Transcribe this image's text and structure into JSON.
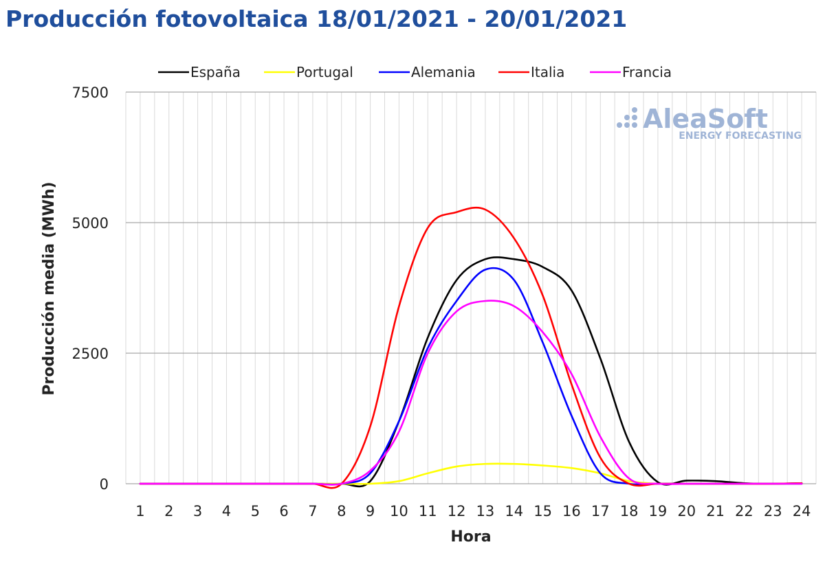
{
  "title": "Producción fotovoltaica 18/01/2021 - 20/01/2021",
  "logo": {
    "name": "AleaSoft",
    "tagline": "ENERGY FORECASTING",
    "color": "#9fb4d6"
  },
  "chart_data": {
    "type": "line",
    "title": "Producción fotovoltaica 18/01/2021 - 20/01/2021",
    "xlabel": "Hora",
    "ylabel": "Producción media (MWh)",
    "x": [
      1,
      2,
      3,
      4,
      5,
      6,
      7,
      8,
      9,
      10,
      11,
      12,
      13,
      14,
      15,
      16,
      17,
      18,
      19,
      20,
      21,
      22,
      23,
      24
    ],
    "ylim": [
      0,
      7500
    ],
    "yticks": [
      0,
      2500,
      5000,
      7500
    ],
    "grid": "horizontal major + vertical minor",
    "legend_position": "top",
    "series": [
      {
        "name": "España",
        "color": "#000000",
        "values": [
          0,
          0,
          0,
          0,
          0,
          0,
          0,
          0,
          50,
          1200,
          2800,
          3900,
          4300,
          4300,
          4150,
          3700,
          2400,
          800,
          30,
          60,
          50,
          10,
          0,
          10
        ]
      },
      {
        "name": "Portugal",
        "color": "#ffff00",
        "values": [
          0,
          0,
          0,
          0,
          0,
          0,
          0,
          0,
          0,
          50,
          200,
          330,
          380,
          380,
          350,
          300,
          200,
          50,
          0,
          0,
          0,
          0,
          0,
          0
        ]
      },
      {
        "name": "Alemania",
        "color": "#0000ff",
        "values": [
          0,
          0,
          0,
          0,
          0,
          0,
          0,
          0,
          200,
          1200,
          2600,
          3500,
          4100,
          3900,
          2700,
          1300,
          200,
          0,
          0,
          0,
          0,
          0,
          0,
          0
        ]
      },
      {
        "name": "Italia",
        "color": "#ff0000",
        "values": [
          0,
          0,
          0,
          0,
          0,
          0,
          0,
          0,
          1100,
          3400,
          4900,
          5200,
          5250,
          4700,
          3600,
          1900,
          500,
          0,
          0,
          0,
          0,
          0,
          0,
          10
        ]
      },
      {
        "name": "Francia",
        "color": "#ff00ff",
        "values": [
          0,
          0,
          0,
          0,
          0,
          0,
          0,
          0,
          250,
          1000,
          2500,
          3300,
          3500,
          3400,
          2900,
          2100,
          900,
          100,
          0,
          0,
          0,
          0,
          0,
          0
        ]
      }
    ]
  }
}
